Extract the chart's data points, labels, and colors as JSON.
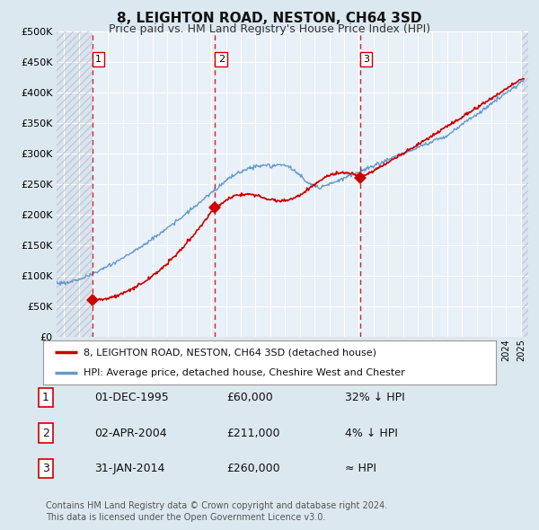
{
  "title": "8, LEIGHTON ROAD, NESTON, CH64 3SD",
  "subtitle": "Price paid vs. HM Land Registry's House Price Index (HPI)",
  "ylim": [
    0,
    500000
  ],
  "yticks": [
    0,
    50000,
    100000,
    150000,
    200000,
    250000,
    300000,
    350000,
    400000,
    450000,
    500000
  ],
  "xlim_start": 1993.5,
  "xlim_end": 2025.5,
  "sale_dates": [
    1995.917,
    2004.25,
    2014.083
  ],
  "sale_prices": [
    60000,
    211000,
    260000
  ],
  "sale_labels": [
    "1",
    "2",
    "3"
  ],
  "dashed_line_color": "#cc0000",
  "sale_marker_color": "#cc0000",
  "hpi_line_color": "#6699cc",
  "price_line_color": "#cc0000",
  "legend_label_price": "8, LEIGHTON ROAD, NESTON, CH64 3SD (detached house)",
  "legend_label_hpi": "HPI: Average price, detached house, Cheshire West and Chester",
  "table_rows": [
    [
      "1",
      "01-DEC-1995",
      "£60,000",
      "32% ↓ HPI"
    ],
    [
      "2",
      "02-APR-2004",
      "£211,000",
      "4% ↓ HPI"
    ],
    [
      "3",
      "31-JAN-2014",
      "£260,000",
      "≈ HPI"
    ]
  ],
  "footnote": "Contains HM Land Registry data © Crown copyright and database right 2024.\nThis data is licensed under the Open Government Licence v3.0.",
  "bg_color": "#dce8f0",
  "plot_bg_color": "#e8f0f8",
  "hatch_color": "#c8d4de",
  "grid_color": "#ffffff",
  "label_box_color": "#ffffff",
  "label_box_edge": "#cc0000"
}
